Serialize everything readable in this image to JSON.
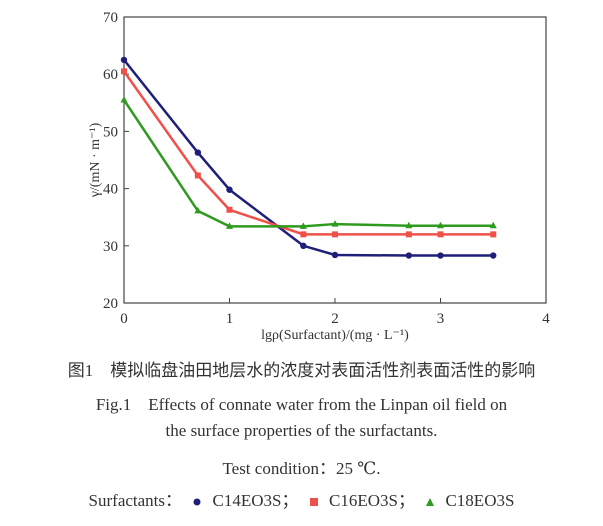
{
  "chart_data": {
    "type": "line",
    "xlabel": "lgρ(Surfactant)/(mg · L⁻¹)",
    "ylabel": "γ/(mN · m⁻¹)",
    "xlim": [
      0,
      4
    ],
    "ylim": [
      20,
      70
    ],
    "xticks": [
      "0",
      "1",
      "2",
      "3",
      "4"
    ],
    "yticks": [
      "20",
      "30",
      "40",
      "50",
      "60",
      "70"
    ],
    "grid": false,
    "x": [
      0,
      0.7,
      1,
      1.7,
      2,
      2.7,
      3,
      3.5
    ],
    "series": [
      {
        "name": "C14EO3S",
        "marker": "circle",
        "color": "#1f1f7a",
        "values": [
          62.5,
          46.3,
          39.8,
          30.0,
          28.4,
          28.3,
          28.3,
          28.3
        ]
      },
      {
        "name": "C16EO3S",
        "marker": "square",
        "color": "#f0504a",
        "values": [
          60.5,
          42.3,
          36.3,
          32.0,
          32.0,
          32.0,
          32.0,
          32.0
        ]
      },
      {
        "name": "C18EO3S",
        "marker": "triangle",
        "color": "#2e9a1e",
        "values": [
          55.5,
          36.1,
          33.4,
          33.4,
          33.8,
          33.5,
          33.5,
          33.5
        ]
      }
    ]
  },
  "caption": {
    "cn": "图1　模拟临盘油田地层水的浓度对表面活性剂表面活性的影响",
    "en_line1": "Fig.1　Effects of connate water from the Linpan oil field on",
    "en_line2": "the surface properties of the surfactants.",
    "condition": "Test condition：25 ℃.",
    "legend_label": "Surfactants：",
    "legend_sep": "；"
  }
}
